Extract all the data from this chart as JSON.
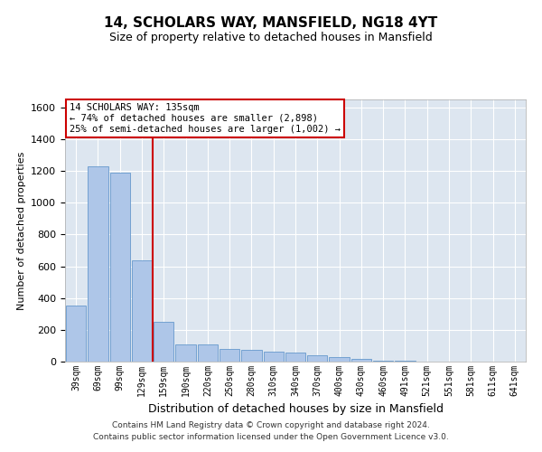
{
  "title1": "14, SCHOLARS WAY, MANSFIELD, NG18 4YT",
  "title2": "Size of property relative to detached houses in Mansfield",
  "xlabel": "Distribution of detached houses by size in Mansfield",
  "ylabel": "Number of detached properties",
  "footer": "Contains HM Land Registry data © Crown copyright and database right 2024.\nContains public sector information licensed under the Open Government Licence v3.0.",
  "bar_color": "#aec6e8",
  "bar_edge_color": "#6699cc",
  "background_color": "#dde6f0",
  "grid_color": "#ffffff",
  "annotation_text": "14 SCHOLARS WAY: 135sqm\n← 74% of detached houses are smaller (2,898)\n25% of semi-detached houses are larger (1,002) →",
  "property_line_x": 3.5,
  "property_line_color": "#cc0000",
  "annotation_box_color": "#ffffff",
  "annotation_box_edge": "#cc0000",
  "bins": [
    "39sqm",
    "69sqm",
    "99sqm",
    "129sqm",
    "159sqm",
    "190sqm",
    "220sqm",
    "250sqm",
    "280sqm",
    "310sqm",
    "340sqm",
    "370sqm",
    "400sqm",
    "430sqm",
    "460sqm",
    "491sqm",
    "521sqm",
    "551sqm",
    "581sqm",
    "611sqm",
    "641sqm"
  ],
  "values": [
    350,
    1230,
    1190,
    640,
    250,
    110,
    110,
    80,
    75,
    60,
    55,
    40,
    30,
    15,
    5,
    3,
    2,
    1,
    1,
    1,
    1
  ],
  "ylim": [
    0,
    1650
  ],
  "yticks": [
    0,
    200,
    400,
    600,
    800,
    1000,
    1200,
    1400,
    1600
  ]
}
